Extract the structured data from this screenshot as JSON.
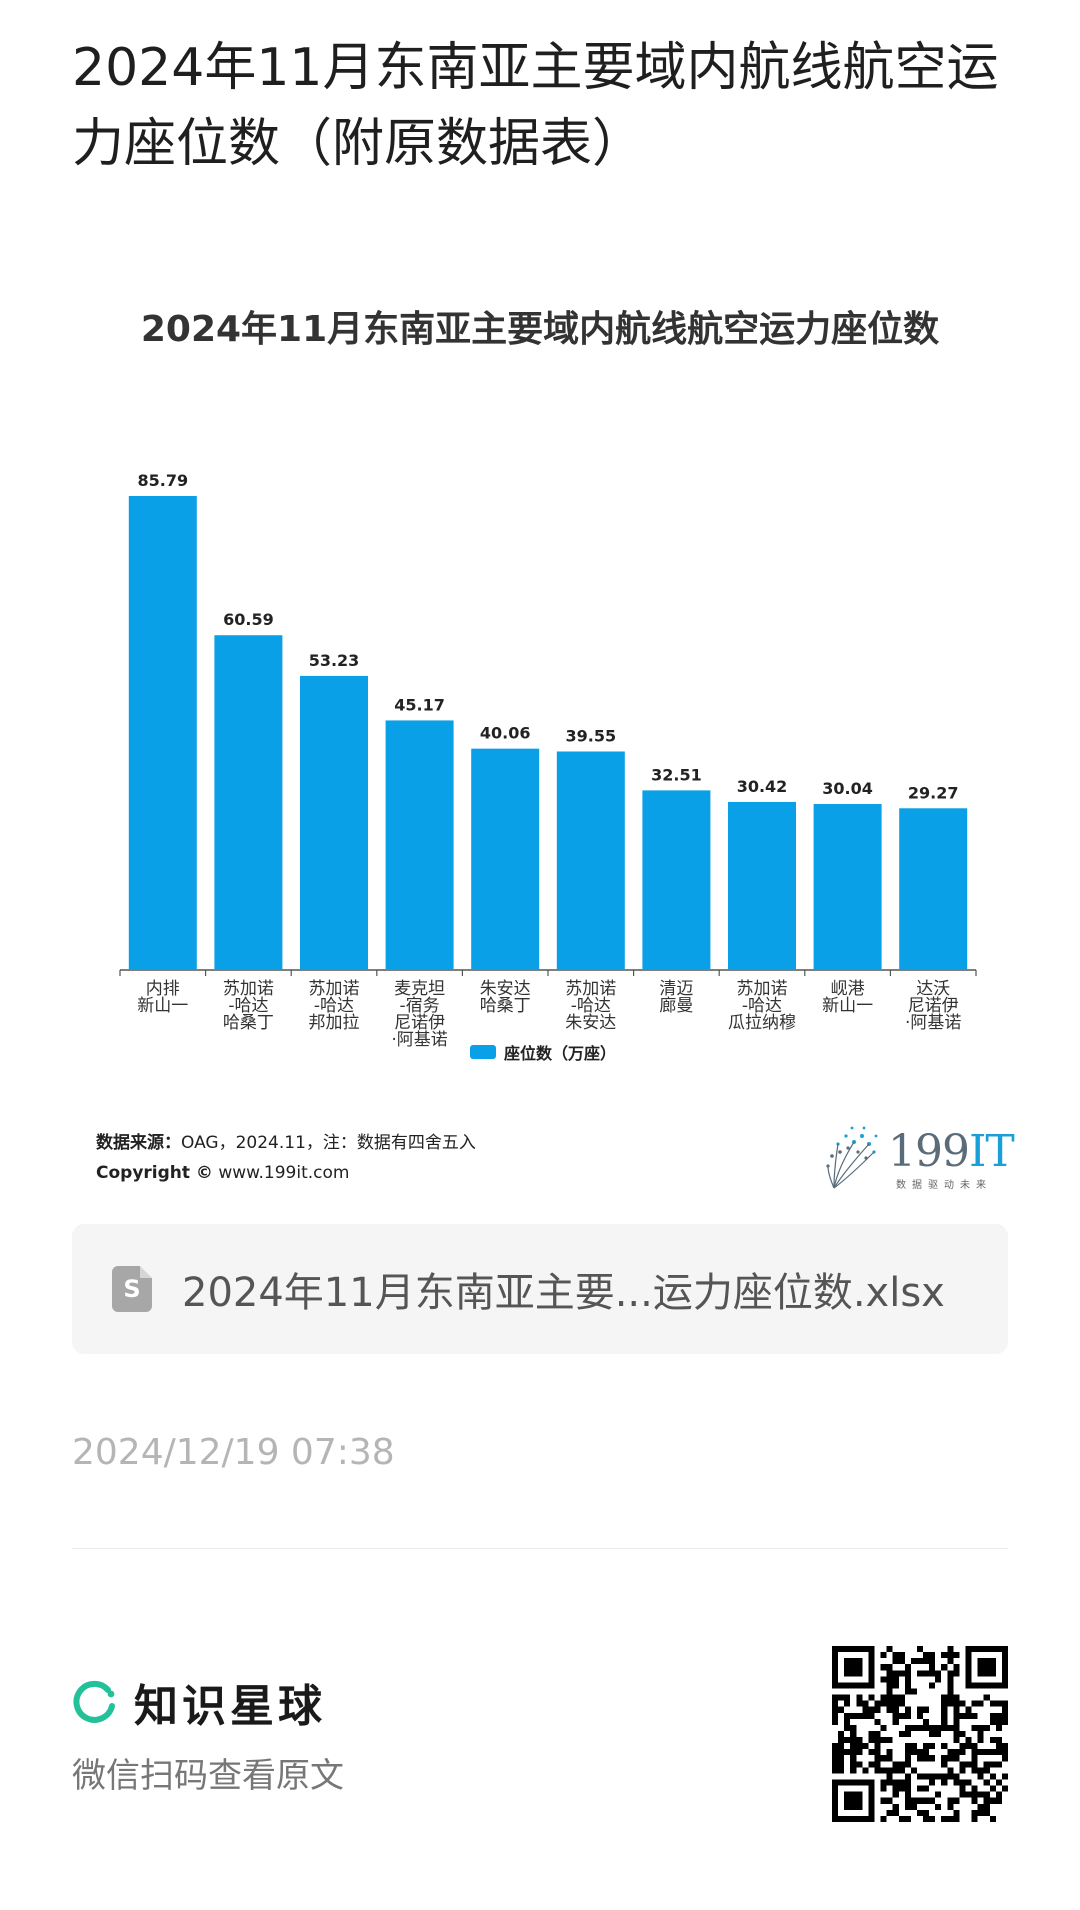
{
  "page": {
    "title": "2024年11月东南亚主要域内航线航空运力座位数（附原数据表）",
    "source_label": "数据来源：",
    "source_text": "OAG，2024.11，注：数据有四舍五入",
    "copyright_label": "Copyright ©",
    "copyright_text": "www.199it.com",
    "logo_main": "199",
    "logo_accent": "IT",
    "logo_sub": "数据驱动未来",
    "file_icon_letter": "S",
    "file_name": "2024年11月东南亚主要...运力座位数.xlsx",
    "timestamp": "2024/12/19 07:38",
    "brand_name": "知识星球",
    "scan_text": "微信扫码查看原文",
    "colors": {
      "bar": "#0aa0e8",
      "brand_green": "#22c19a"
    }
  },
  "chart_data": {
    "type": "bar",
    "title": "2024年11月东南亚主要域内航线航空运力座位数",
    "categories": [
      [
        "内排",
        "新山一"
      ],
      [
        "苏加诺",
        "-哈达",
        "哈桑丁"
      ],
      [
        "苏加诺",
        "-哈达",
        "邦加拉"
      ],
      [
        "麦克坦",
        "-宿务",
        "尼诺伊",
        "·阿基诺"
      ],
      [
        "朱安达",
        "哈桑丁"
      ],
      [
        "苏加诺",
        "-哈达",
        "朱安达"
      ],
      [
        "清迈",
        "廊曼"
      ],
      [
        "苏加诺",
        "-哈达",
        "瓜拉纳穆"
      ],
      [
        "岘港",
        "新山一"
      ],
      [
        "达沃",
        "尼诺伊",
        "·阿基诺"
      ]
    ],
    "series": [
      {
        "name": "座位数（万座）",
        "values": [
          85.79,
          60.59,
          53.23,
          45.17,
          40.06,
          39.55,
          32.51,
          30.42,
          30.04,
          29.27
        ]
      }
    ],
    "value_labels": [
      "85.79",
      "60.59",
      "53.23",
      "45.17",
      "40.06",
      "39.55",
      "32.51",
      "30.42",
      "30.04",
      "29.27"
    ],
    "ylim": [
      0,
      85.79
    ],
    "legend_position": "bottom",
    "grid": false
  }
}
